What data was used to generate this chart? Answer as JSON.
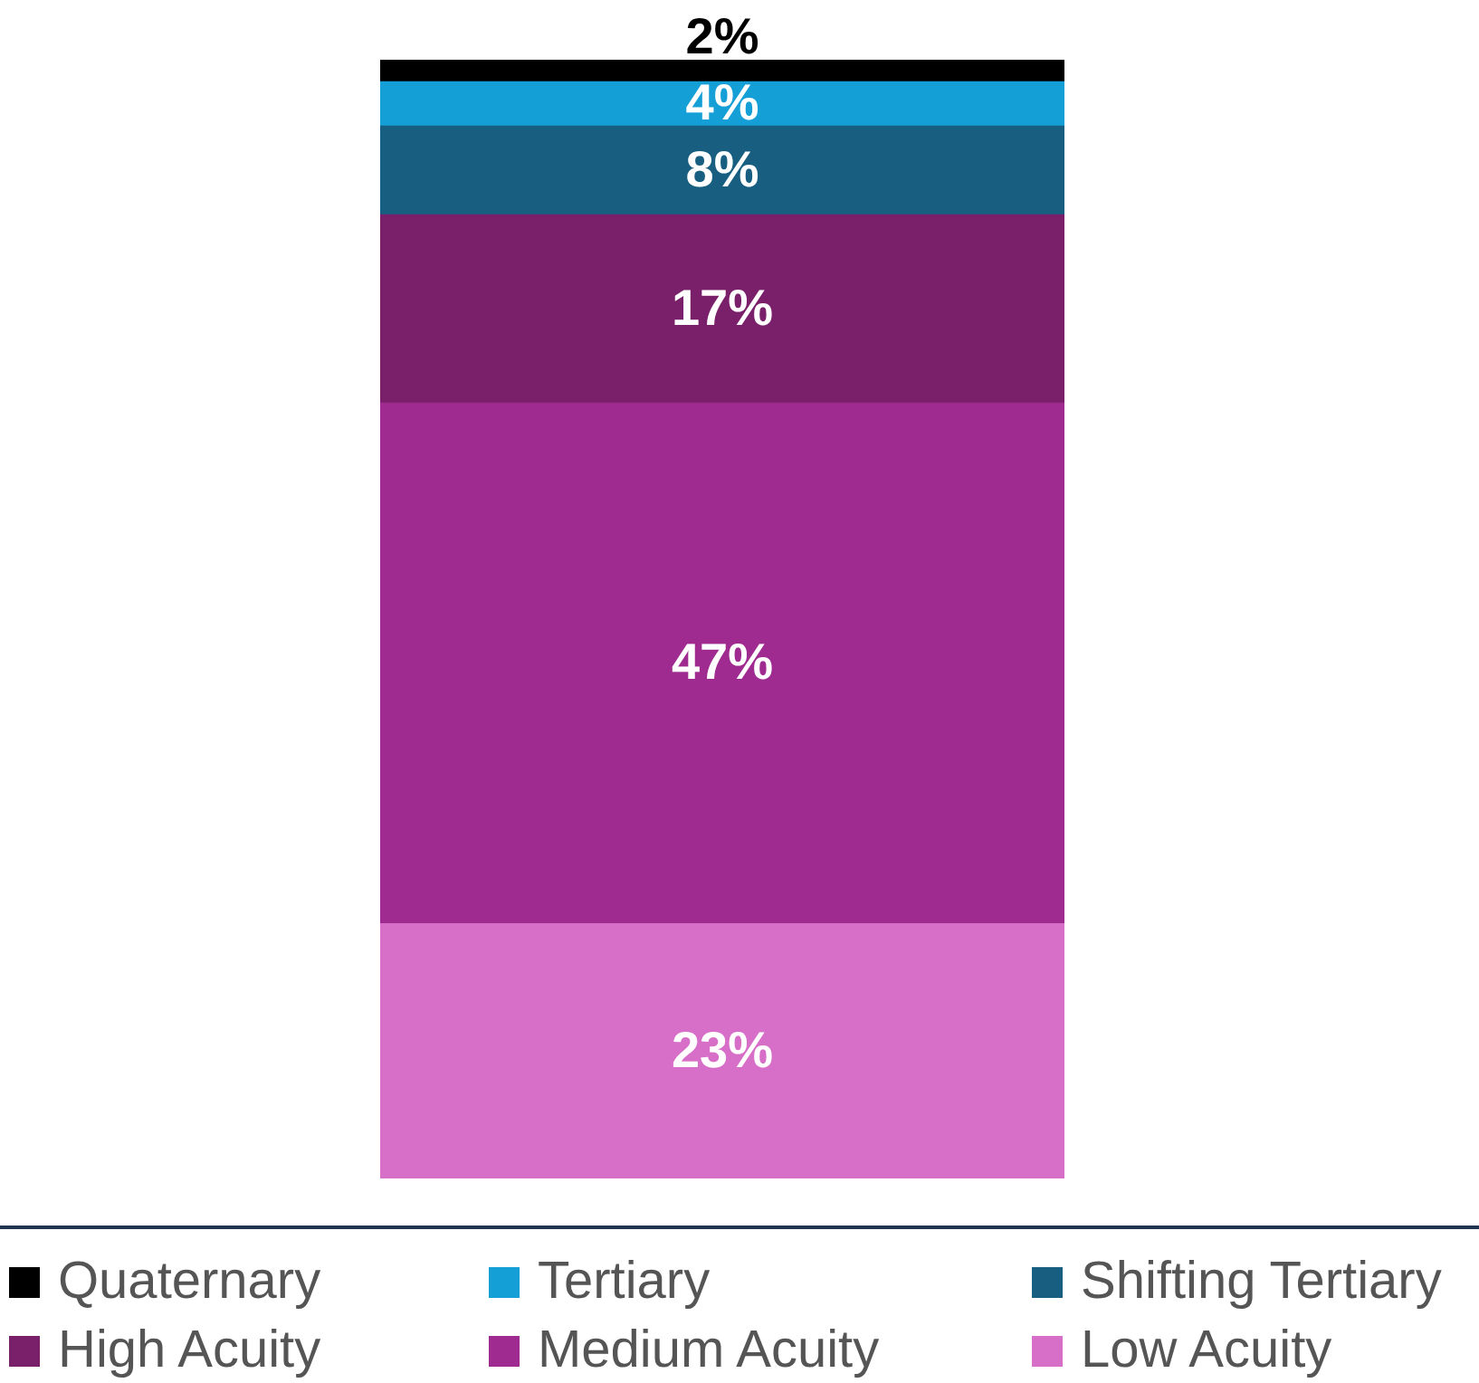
{
  "chart_data": {
    "type": "bar",
    "stacked": true,
    "categories": [
      null
    ],
    "series": [
      {
        "name": "Low Acuity",
        "color": "#d76fc8",
        "values": [
          23
        ],
        "value_labels": [
          "23%"
        ]
      },
      {
        "name": "Medium Acuity",
        "color": "#9f2b90",
        "values": [
          47
        ],
        "value_labels": [
          "47%"
        ]
      },
      {
        "name": "High Acuity",
        "color": "#7a206b",
        "values": [
          17
        ],
        "value_labels": [
          "17%"
        ]
      },
      {
        "name": "Shifting Tertiary",
        "color": "#175e80",
        "values": [
          8
        ],
        "value_labels": [
          "8%"
        ]
      },
      {
        "name": "Tertiary",
        "color": "#159fd7",
        "values": [
          4
        ],
        "value_labels": [
          "4%"
        ]
      },
      {
        "name": "Quaternary",
        "color": "#000000",
        "values": [
          2
        ],
        "value_labels": [
          "2%"
        ]
      }
    ],
    "legend": "bottom"
  }
}
